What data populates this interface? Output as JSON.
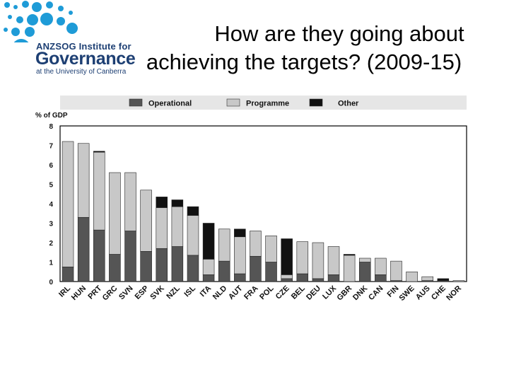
{
  "logo": {
    "org": "ANZSOG Institute for",
    "name": "Governance",
    "sub": "at the University of Canberra",
    "colors": {
      "dots": "#1e9bd7",
      "text": "#1d3f73"
    }
  },
  "title_line1": "How are they going about",
  "title_line2": "achieving the targets? (2009-15)",
  "chart_data": {
    "type": "bar",
    "stacked": true,
    "ylabel": "% of GDP",
    "ylim": [
      0,
      8
    ],
    "yticks": [
      "0",
      "1",
      "2",
      "3",
      "4",
      "5",
      "6",
      "7",
      "8"
    ],
    "legend_position": "top",
    "categories": [
      "IRL",
      "HUN",
      "PRT",
      "GRC",
      "SVN",
      "ESP",
      "SVK",
      "NZL",
      "ISL",
      "ITA",
      "NLD",
      "AUT",
      "FRA",
      "POL",
      "CZE",
      "BEL",
      "DEU",
      "LUX",
      "GBR",
      "DNK",
      "CAN",
      "FIN",
      "SWE",
      "AUS",
      "CHE",
      "NOR"
    ],
    "series": [
      {
        "name": "Operational",
        "color": "#555555",
        "values": [
          0.75,
          3.3,
          2.65,
          1.4,
          2.6,
          1.55,
          1.7,
          1.8,
          1.35,
          0.35,
          1.05,
          0.4,
          1.3,
          1.0,
          0.15,
          0.4,
          0.15,
          0.35,
          0.0,
          1.0,
          0.35,
          0.05,
          0.0,
          0.05,
          0.05,
          0.0
        ]
      },
      {
        "name": "Programme",
        "color": "#c8c8c8",
        "values": [
          6.45,
          3.8,
          4.0,
          4.2,
          3.0,
          3.15,
          2.1,
          2.05,
          2.05,
          0.8,
          1.65,
          1.9,
          1.3,
          1.35,
          0.2,
          1.65,
          1.85,
          1.45,
          1.35,
          0.2,
          0.85,
          1.0,
          0.5,
          0.2,
          0.0,
          0.05
        ]
      },
      {
        "name": "Other",
        "color": "#111111",
        "values": [
          0.0,
          0.0,
          0.05,
          0.0,
          0.0,
          0.0,
          0.55,
          0.35,
          0.45,
          1.85,
          0.0,
          0.4,
          0.0,
          0.0,
          1.85,
          0.0,
          0.0,
          0.0,
          0.05,
          0.0,
          0.0,
          0.0,
          0.0,
          0.0,
          0.1,
          0.0
        ]
      }
    ]
  }
}
